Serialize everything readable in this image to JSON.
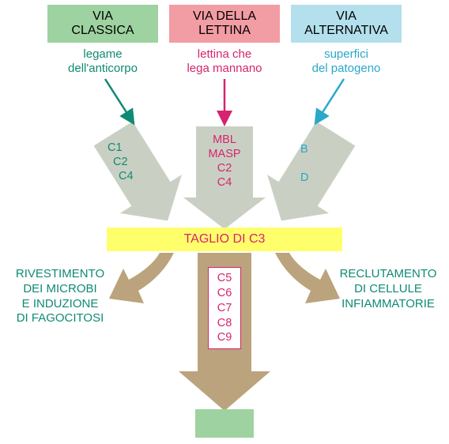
{
  "colors": {
    "green_box": "#9ed2a0",
    "pink_box": "#f29ca4",
    "blue_box": "#b3e0ec",
    "teal_text": "#0f8a73",
    "magenta_text": "#d6246e",
    "cyan_text": "#2aa8c9",
    "yellow_bar": "#feff6b",
    "gray_arrow": "#c9d0c3",
    "tan_arrow": "#bba37d",
    "black": "#000000",
    "white": "#ffffff"
  },
  "pathways": {
    "classic": {
      "title1": "VIA",
      "title2": "CLASSICA",
      "sub1": "legame",
      "sub2": "dell'anticorpo",
      "components": [
        "C1",
        "C2",
        "C4"
      ]
    },
    "lectin": {
      "title1": "VIA DELLA",
      "title2": "LETTINA",
      "sub1": "lettina che",
      "sub2": "lega mannano",
      "components": [
        "MBL",
        "MASP",
        "C2",
        "C4"
      ]
    },
    "alt": {
      "title1": "VIA",
      "title2": "ALTERNATIVA",
      "sub1": "superfici",
      "sub2": "del patogeno",
      "components": [
        "B",
        "D"
      ]
    }
  },
  "c3": "TAGLIO DI C3",
  "outcomes": {
    "left": [
      "RIVESTIMENTO",
      "DEI MICROBI",
      "E INDUZIONE",
      "DI FAGOCITOSI"
    ],
    "right": [
      "RECLUTAMENTO",
      "DI CELLULE",
      "INFIAMMATORIE"
    ]
  },
  "mac": [
    "C5",
    "C6",
    "C7",
    "C8",
    "C9"
  ]
}
